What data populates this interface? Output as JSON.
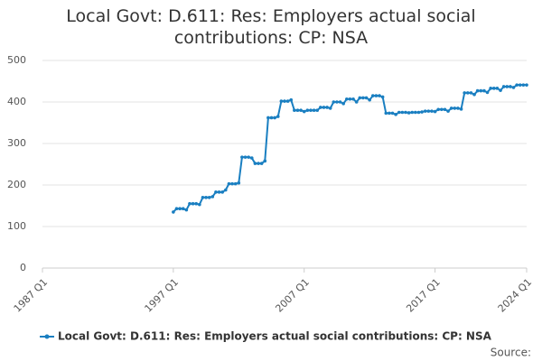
{
  "chart_data": {
    "type": "line",
    "title": "Local Govt: D.611: Res: Employers actual social contributions: CP: NSA",
    "source": "Source:",
    "categories": [
      "1987 Q1",
      null,
      null,
      null,
      null,
      null,
      null,
      null,
      null,
      null,
      null,
      null,
      null,
      null,
      null,
      null,
      null,
      null,
      null,
      null,
      null,
      null,
      null,
      null,
      null,
      null,
      null,
      null,
      null,
      null,
      null,
      null,
      null,
      null,
      null,
      null,
      null,
      null,
      null,
      null,
      "1997 Q1",
      null,
      null,
      null,
      null,
      null,
      null,
      null,
      null,
      null,
      null,
      null,
      null,
      null,
      null,
      null,
      null,
      null,
      null,
      null,
      null,
      null,
      null,
      null,
      null,
      null,
      null,
      null,
      null,
      null,
      null,
      null,
      null,
      null,
      null,
      null,
      null,
      null,
      null,
      null,
      "2007 Q1",
      null,
      null,
      null,
      null,
      null,
      null,
      null,
      null,
      null,
      null,
      null,
      null,
      null,
      null,
      null,
      null,
      null,
      null,
      null,
      null,
      null,
      null,
      null,
      null,
      null,
      null,
      null,
      null,
      null,
      null,
      null,
      null,
      null,
      null,
      null,
      null,
      null,
      null,
      null,
      "2017 Q1",
      null,
      null,
      null,
      null,
      null,
      null,
      null,
      null,
      null,
      null,
      null,
      null,
      null,
      null,
      null,
      null,
      null,
      null,
      null,
      null,
      null,
      null,
      null,
      null,
      null,
      null,
      null,
      "2024 Q1"
    ],
    "series": [
      {
        "name": "Local Govt: D.611: Res: Employers actual social contributions: CP: NSA",
        "color": "#1a7fc1",
        "values": [
          null,
          null,
          null,
          null,
          null,
          null,
          null,
          null,
          null,
          null,
          null,
          null,
          null,
          null,
          null,
          null,
          null,
          null,
          null,
          null,
          null,
          null,
          null,
          null,
          null,
          null,
          null,
          null,
          null,
          null,
          null,
          null,
          null,
          null,
          null,
          null,
          null,
          null,
          null,
          null,
          135,
          143,
          143,
          143,
          140,
          155,
          155,
          155,
          153,
          170,
          170,
          170,
          172,
          183,
          183,
          183,
          188,
          203,
          203,
          203,
          205,
          267,
          267,
          267,
          265,
          252,
          252,
          252,
          258,
          362,
          362,
          362,
          365,
          402,
          402,
          402,
          405,
          380,
          380,
          380,
          377,
          380,
          380,
          380,
          380,
          387,
          387,
          387,
          385,
          400,
          400,
          400,
          396,
          407,
          407,
          407,
          400,
          410,
          410,
          410,
          405,
          415,
          415,
          415,
          412,
          373,
          373,
          373,
          370,
          375,
          375,
          375,
          374,
          375,
          375,
          375,
          376,
          378,
          378,
          378,
          377,
          382,
          382,
          382,
          378,
          385,
          385,
          385,
          383,
          422,
          422,
          422,
          418,
          427,
          427,
          427,
          423,
          433,
          433,
          433,
          428,
          437,
          437,
          437,
          435,
          441,
          441,
          441,
          441
        ]
      }
    ],
    "ylim": [
      0,
      500
    ],
    "yticks": [
      0,
      100,
      200,
      300,
      400,
      500
    ],
    "grid": true
  }
}
